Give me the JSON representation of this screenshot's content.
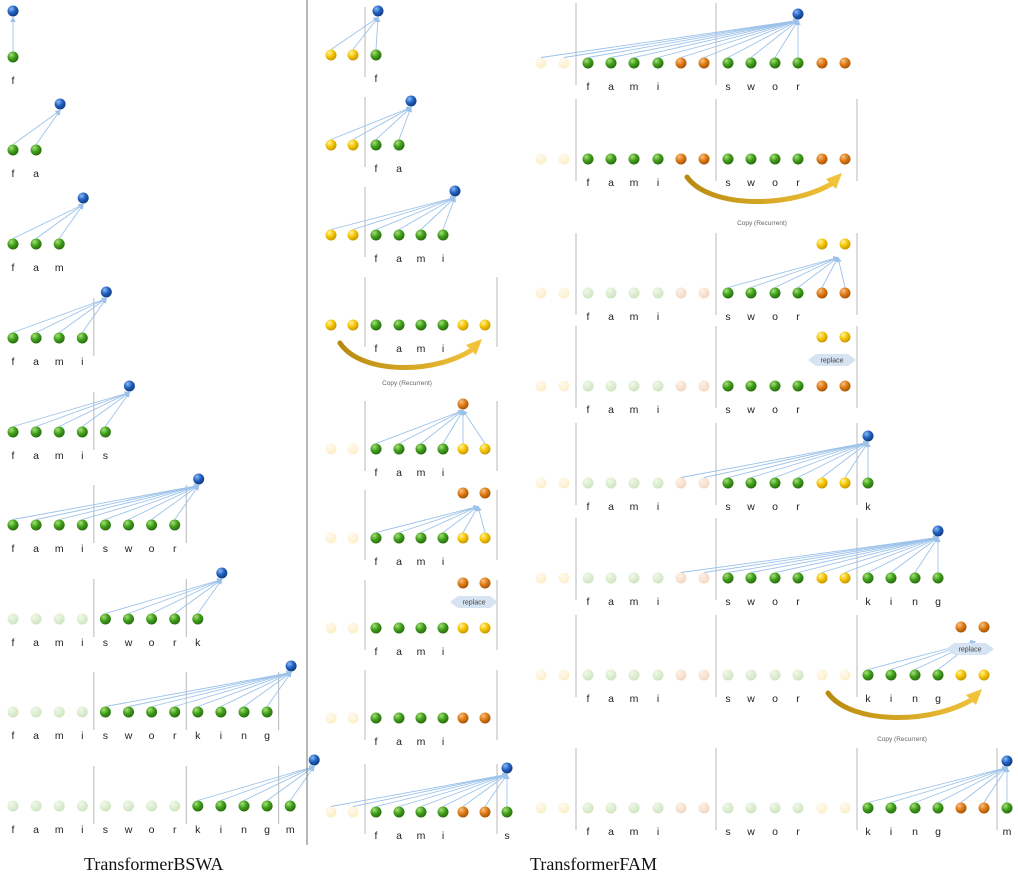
{
  "captions": {
    "left": "TransformerBSWA",
    "right": "TransformerFAM"
  },
  "labels": {
    "copy": "Copy (Recurrent)",
    "replace": "replace"
  },
  "colors": {
    "green": "#3f9e1a",
    "green_faded": "#d3e8c5",
    "yellow": "#f4c400",
    "yellow_faded": "#fdf1cc",
    "orange": "#dd7a12",
    "orange_faded": "#f6dcc6",
    "blue": "#1f5fbf",
    "arrow": "#9cc2ea",
    "copy_arrow": "#d4a020",
    "separator": "#b8b8b8"
  },
  "bswa_rows": [
    {
      "tokens": [
        "f"
      ],
      "active": [
        0
      ],
      "faded": [],
      "query": true
    },
    {
      "tokens": [
        "f",
        "a"
      ],
      "active": [
        0,
        1
      ],
      "faded": [],
      "query": true
    },
    {
      "tokens": [
        "f",
        "a",
        "m"
      ],
      "active": [
        0,
        1,
        2
      ],
      "faded": [],
      "query": true
    },
    {
      "tokens": [
        "f",
        "a",
        "m",
        "i"
      ],
      "active": [
        0,
        1,
        2,
        3
      ],
      "faded": [],
      "query": true
    },
    {
      "tokens": [
        "f",
        "a",
        "m",
        "i",
        "s"
      ],
      "active": [
        0,
        1,
        2,
        3,
        4
      ],
      "faded": [],
      "query": true
    },
    {
      "tokens": [
        "f",
        "a",
        "m",
        "i",
        "s",
        "w",
        "o",
        "r"
      ],
      "active": [
        0,
        1,
        2,
        3,
        4,
        5,
        6,
        7
      ],
      "faded": [],
      "query": true
    },
    {
      "tokens": [
        "f",
        "a",
        "m",
        "i",
        "s",
        "w",
        "o",
        "r",
        "k"
      ],
      "active": [
        4,
        5,
        6,
        7,
        8
      ],
      "faded": [
        0,
        1,
        2,
        3
      ],
      "query": true
    },
    {
      "tokens": [
        "f",
        "a",
        "m",
        "i",
        "s",
        "w",
        "o",
        "r",
        "k",
        "i",
        "n",
        "g"
      ],
      "active": [
        4,
        5,
        6,
        7,
        8,
        9,
        10,
        11
      ],
      "faded": [
        0,
        1,
        2,
        3
      ],
      "query": true
    },
    {
      "tokens": [
        "f",
        "a",
        "m",
        "i",
        "s",
        "w",
        "o",
        "r",
        "k",
        "i",
        "n",
        "g",
        "m"
      ],
      "active": [
        8,
        9,
        10,
        11,
        12
      ],
      "faded": [
        0,
        1,
        2,
        3,
        4,
        5,
        6,
        7
      ],
      "query": true
    }
  ],
  "fam_mid_rows": [
    {
      "tokens": [
        "f"
      ],
      "action": "attend"
    },
    {
      "tokens": [
        "f",
        "a"
      ],
      "action": "attend"
    },
    {
      "tokens": [
        "f",
        "a",
        "m",
        "i"
      ],
      "action": "attend"
    },
    {
      "tokens": [
        "f",
        "a",
        "m",
        "i"
      ],
      "action": "copy"
    },
    {
      "tokens": [
        "f",
        "a",
        "m",
        "i"
      ],
      "action": "fam-update-1"
    },
    {
      "tokens": [
        "f",
        "a",
        "m",
        "i"
      ],
      "action": "fam-update-2"
    },
    {
      "tokens": [
        "f",
        "a",
        "m",
        "i"
      ],
      "action": "replace"
    },
    {
      "tokens": [
        "f",
        "a",
        "m",
        "i"
      ],
      "action": "none"
    },
    {
      "tokens": [
        "f",
        "a",
        "m",
        "i",
        "s"
      ],
      "action": "attend"
    }
  ],
  "fam_right_rows": [
    {
      "tokens": [
        "f",
        "a",
        "m",
        "i",
        "s",
        "w",
        "o",
        "r"
      ],
      "action": "attend"
    },
    {
      "tokens": [
        "f",
        "a",
        "m",
        "i",
        "s",
        "w",
        "o",
        "r"
      ],
      "action": "copy"
    },
    {
      "tokens": [
        "f",
        "a",
        "m",
        "i",
        "s",
        "w",
        "o",
        "r"
      ],
      "action": "fam-update"
    },
    {
      "tokens": [
        "f",
        "a",
        "m",
        "i",
        "s",
        "w",
        "o",
        "r"
      ],
      "action": "replace"
    },
    {
      "tokens": [
        "f",
        "a",
        "m",
        "i",
        "s",
        "w",
        "o",
        "r",
        "k"
      ],
      "action": "attend"
    },
    {
      "tokens": [
        "f",
        "a",
        "m",
        "i",
        "s",
        "w",
        "o",
        "r",
        "k",
        "i",
        "n",
        "g"
      ],
      "action": "attend"
    },
    {
      "tokens": [
        "f",
        "a",
        "m",
        "i",
        "s",
        "w",
        "o",
        "r",
        "k",
        "i",
        "n",
        "g"
      ],
      "action": "replace-copy"
    },
    {
      "tokens": [
        "f",
        "a",
        "m",
        "i",
        "s",
        "w",
        "o",
        "r",
        "k",
        "i",
        "n",
        "g",
        "m"
      ],
      "action": "attend"
    }
  ]
}
